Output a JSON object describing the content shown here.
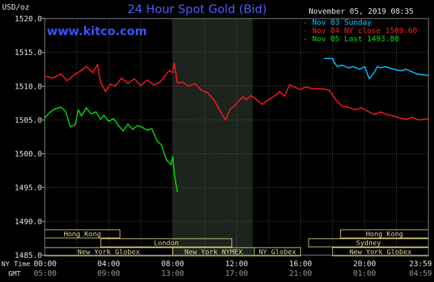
{
  "header": {
    "unit": "USD/oz",
    "title": "24 Hour Spot Gold (Bid)",
    "datetime": "November 05, 2019 08:35",
    "site": "www.kitco.com"
  },
  "legend": [
    {
      "label": "Nov 03 Sunday",
      "color": "#00c8ff"
    },
    {
      "label": "Nov 04 NY close 1509.60",
      "color": "#ff1a1a"
    },
    {
      "label": "Nov 05 Last 1493.80",
      "color": "#00e000"
    }
  ],
  "axis_labels": {
    "ny_time": "NY Time",
    "gmt": "GMT"
  },
  "chart_data": {
    "type": "line",
    "title": "24 Hour Spot Gold (Bid)",
    "ylabel": "USD/oz",
    "ylim": [
      1485,
      1520
    ],
    "xlim": [
      0,
      24
    ],
    "y_ticks": [
      "1520.0",
      "1515.0",
      "1510.0",
      "1505.0",
      "1500.0",
      "1495.0",
      "1490.0",
      "1485.0"
    ],
    "x_ticks_ny": [
      "00:00",
      "04:00",
      "08:00",
      "12:00",
      "16:00",
      "20:00",
      "23:59"
    ],
    "x_ticks_gmt": [
      "05:00",
      "09:00",
      "13:00",
      "17:00",
      "21:00",
      "01:00",
      "04:59"
    ],
    "grid": true,
    "shaded_session": [
      8,
      13
    ],
    "sessions": [
      {
        "name": "Hong Kong",
        "row": 0,
        "start": 0,
        "end": 4.7
      },
      {
        "name": "London",
        "row": 1,
        "start": 3.5,
        "end": 11.7
      },
      {
        "name": "New York Globex",
        "row": 2,
        "start": 0,
        "end": 8
      },
      {
        "name": "New York NYMEX",
        "row": 2,
        "start": 8,
        "end": 13.1
      },
      {
        "name": "NY Globex",
        "row": 2,
        "start": 13.1,
        "end": 16
      },
      {
        "name": "Hong Kong",
        "row": 0,
        "start": 18.5,
        "end": 24
      },
      {
        "name": "Sydney",
        "row": 1,
        "start": 16.5,
        "end": 24
      },
      {
        "name": "New York Globex",
        "row": 2,
        "start": 18,
        "end": 24
      }
    ],
    "series": [
      {
        "name": "Nov 03 Sunday",
        "color": "#00c8ff",
        "x": [
          17.5,
          18.0,
          18.1,
          18.3,
          18.6,
          19.0,
          19.3,
          19.7,
          20.0,
          20.3,
          20.6,
          20.8,
          21.0,
          21.3,
          21.7,
          22.0,
          22.3,
          22.6,
          23.0,
          23.3,
          23.6,
          23.98
        ],
        "y": [
          1514.1,
          1514.1,
          1513.5,
          1512.9,
          1513.1,
          1512.7,
          1512.9,
          1512.5,
          1512.9,
          1511.1,
          1512.0,
          1512.9,
          1512.7,
          1512.9,
          1512.6,
          1512.4,
          1512.3,
          1512.5,
          1512.1,
          1511.8,
          1511.7,
          1511.6
        ]
      },
      {
        "name": "Nov 04 NY close 1509.60",
        "color": "#ff1a1a",
        "x": [
          0,
          0.5,
          1.0,
          1.4,
          1.8,
          2.2,
          2.6,
          3.0,
          3.3,
          3.5,
          3.8,
          4.1,
          4.4,
          4.8,
          5.2,
          5.6,
          6.0,
          6.4,
          6.8,
          7.2,
          7.5,
          7.8,
          8.0,
          8.1,
          8.3,
          8.6,
          9.0,
          9.4,
          9.8,
          10.2,
          10.6,
          11.0,
          11.3,
          11.6,
          11.9,
          12.2,
          12.4,
          12.6,
          12.9,
          13.2,
          13.6,
          14.0,
          14.4,
          14.7,
          15.0,
          15.3,
          15.6,
          16.0,
          16.3,
          16.6,
          17.0,
          17.4,
          17.8,
          18.2,
          18.6,
          19.0,
          19.4,
          19.8,
          20.2,
          20.6,
          21.0,
          21.4,
          21.8,
          22.2,
          22.6,
          23.0,
          23.4,
          23.98
        ],
        "y": [
          1511.5,
          1511.2,
          1511.8,
          1510.8,
          1511.6,
          1512.2,
          1512.9,
          1512.0,
          1513.2,
          1510.5,
          1509.2,
          1510.3,
          1510.0,
          1511.2,
          1510.4,
          1511.1,
          1510.1,
          1510.9,
          1510.2,
          1510.6,
          1511.5,
          1512.3,
          1512.0,
          1513.4,
          1510.5,
          1510.6,
          1510.0,
          1510.4,
          1509.4,
          1509.0,
          1507.9,
          1506.2,
          1505.0,
          1506.6,
          1507.2,
          1508.0,
          1508.4,
          1508.0,
          1508.6,
          1508.1,
          1507.3,
          1508.0,
          1508.6,
          1509.2,
          1508.5,
          1510.2,
          1509.9,
          1509.5,
          1509.9,
          1509.7,
          1509.6,
          1509.6,
          1509.4,
          1508.0,
          1507.0,
          1506.9,
          1506.5,
          1506.8,
          1506.3,
          1505.8,
          1506.2,
          1505.8,
          1505.6,
          1505.3,
          1505.1,
          1505.4,
          1505.0,
          1505.2
        ]
      },
      {
        "name": "Nov 05 Last 1493.80",
        "color": "#00e000",
        "x": [
          0,
          0.3,
          0.6,
          1.0,
          1.3,
          1.6,
          1.9,
          2.1,
          2.3,
          2.6,
          2.9,
          3.2,
          3.5,
          3.7,
          4.0,
          4.3,
          4.6,
          4.9,
          5.2,
          5.5,
          5.8,
          6.1,
          6.4,
          6.7,
          7.0,
          7.3,
          7.6,
          7.9,
          8.0,
          8.1,
          8.2,
          8.3
        ],
        "y": [
          1505.3,
          1506.1,
          1506.6,
          1506.9,
          1506.3,
          1504.0,
          1504.3,
          1506.5,
          1505.6,
          1506.8,
          1505.9,
          1506.2,
          1505.1,
          1505.7,
          1504.8,
          1505.2,
          1504.2,
          1503.4,
          1504.4,
          1503.6,
          1504.2,
          1503.9,
          1503.5,
          1503.7,
          1502.0,
          1501.3,
          1499.1,
          1498.4,
          1499.6,
          1497.2,
          1495.6,
          1494.4
        ]
      }
    ]
  }
}
